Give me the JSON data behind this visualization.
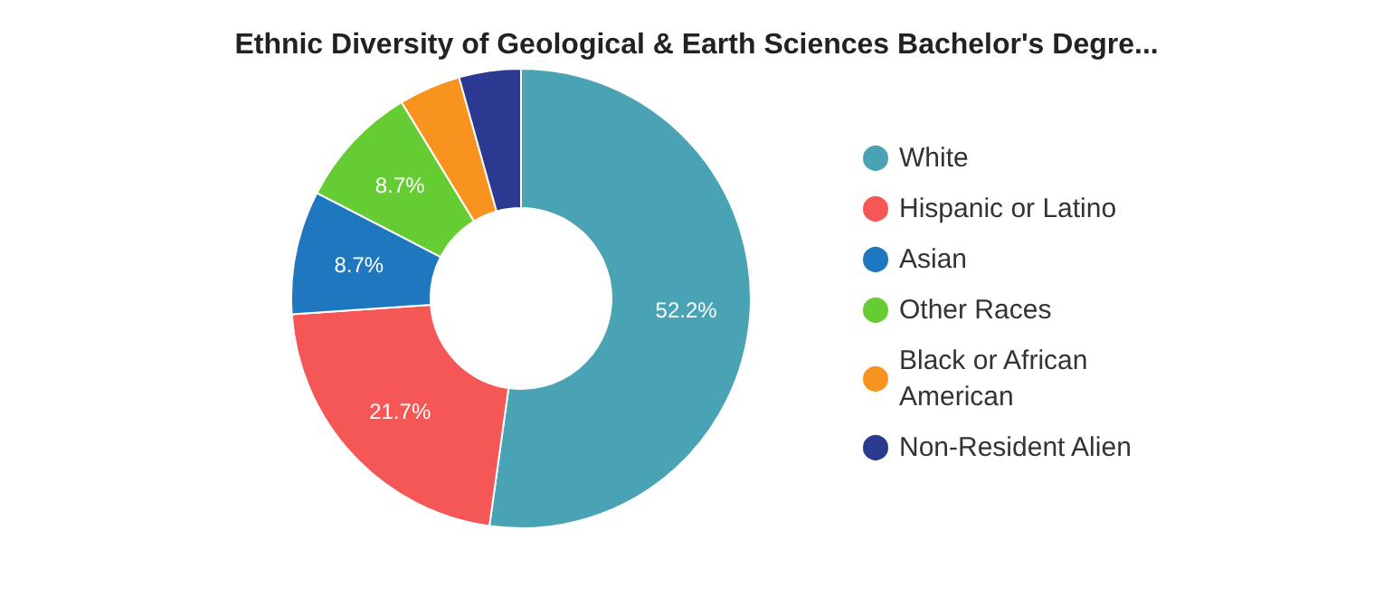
{
  "chart_data": {
    "type": "donut",
    "title": "Ethnic Diversity of Geological & Earth Sciences Bachelor's Degre...",
    "categories": [
      "White",
      "Hispanic or Latino",
      "Asian",
      "Other Races",
      "Black or African American",
      "Non-Resident Alien"
    ],
    "values": [
      52.2,
      21.7,
      8.7,
      8.7,
      4.35,
      4.35
    ],
    "colors": [
      "#4aa3b5",
      "#f55656",
      "#1f77c0",
      "#66cc33",
      "#f7931e",
      "#2b3990"
    ],
    "value_labels": [
      "52.2%",
      "21.7%",
      "8.7%",
      "8.7%",
      null,
      null
    ],
    "legend": "right"
  }
}
